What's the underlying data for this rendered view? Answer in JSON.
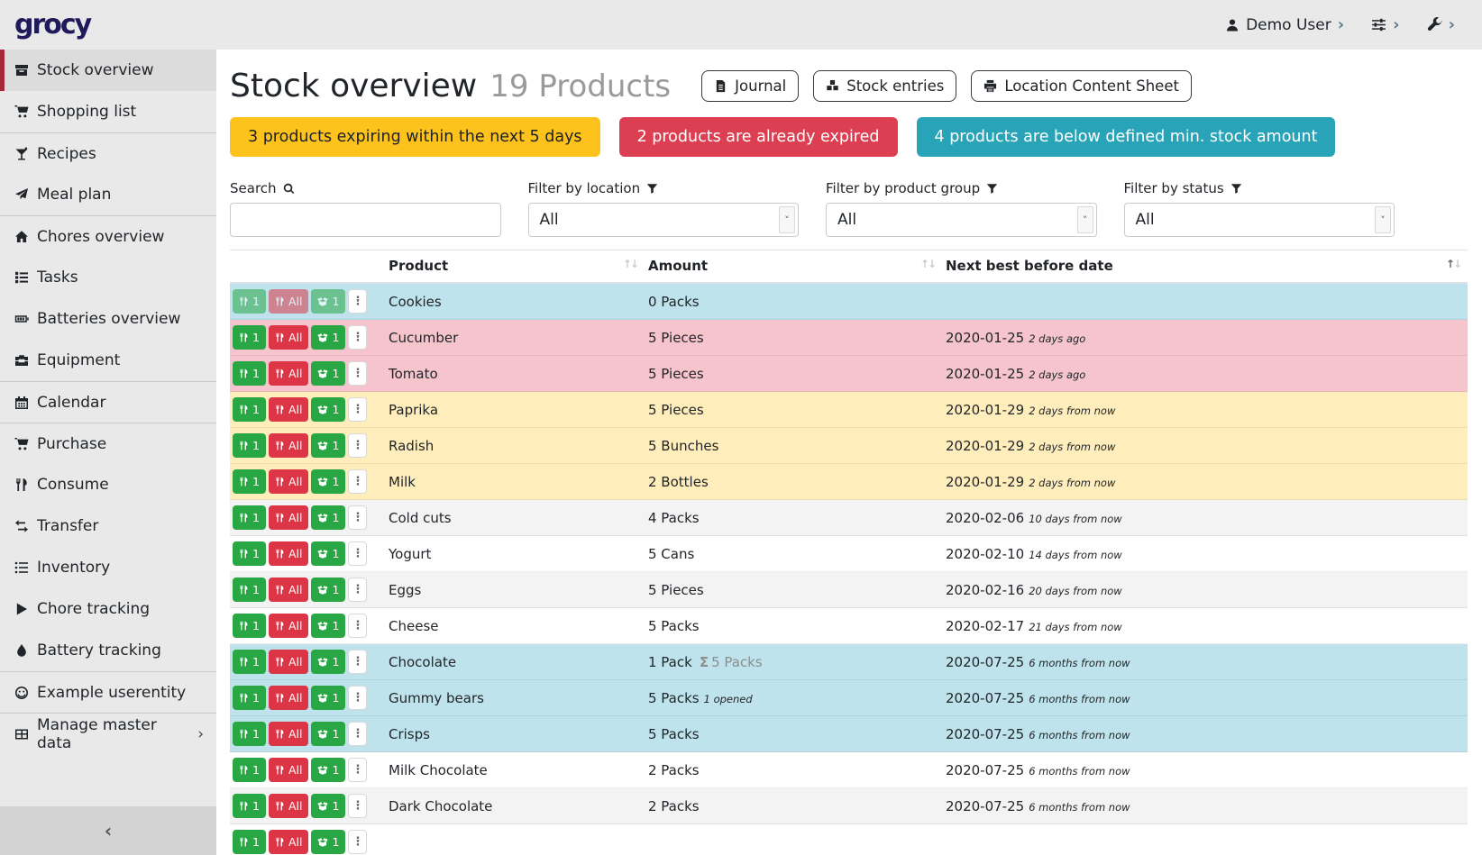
{
  "topbar": {
    "logo": "grocy",
    "user": {
      "label": "Demo User",
      "icon": "person-icon",
      "chevron": "›"
    },
    "settings": {
      "icon": "sliders-icon",
      "chevron": "›"
    },
    "admin": {
      "icon": "wrench-icon",
      "chevron": "›"
    }
  },
  "sidebar": {
    "collapse_chevron": "‹",
    "items": [
      {
        "label": "Stock overview",
        "icon": "box-icon",
        "active": true,
        "group_start": false
      },
      {
        "label": "Shopping list",
        "icon": "cart-icon",
        "active": false,
        "group_start": false
      },
      {
        "label": "Recipes",
        "icon": "cocktail-icon",
        "active": false,
        "group_start": true
      },
      {
        "label": "Meal plan",
        "icon": "paper-plane-icon",
        "active": false,
        "group_start": false
      },
      {
        "label": "Chores overview",
        "icon": "home-icon",
        "active": false,
        "group_start": true
      },
      {
        "label": "Tasks",
        "icon": "tasks-icon",
        "active": false,
        "group_start": false
      },
      {
        "label": "Batteries overview",
        "icon": "battery-icon",
        "active": false,
        "group_start": false
      },
      {
        "label": "Equipment",
        "icon": "toolbox-icon",
        "active": false,
        "group_start": false
      },
      {
        "label": "Calendar",
        "icon": "calendar-icon",
        "active": false,
        "group_start": true
      },
      {
        "label": "Purchase",
        "icon": "cart-icon",
        "active": false,
        "group_start": true
      },
      {
        "label": "Consume",
        "icon": "utensils-icon",
        "active": false,
        "group_start": false
      },
      {
        "label": "Transfer",
        "icon": "exchange-icon",
        "active": false,
        "group_start": false
      },
      {
        "label": "Inventory",
        "icon": "list-icon",
        "active": false,
        "group_start": false
      },
      {
        "label": "Chore tracking",
        "icon": "play-icon",
        "active": false,
        "group_start": false
      },
      {
        "label": "Battery tracking",
        "icon": "tint-icon",
        "active": false,
        "group_start": false
      },
      {
        "label": "Example userentity",
        "icon": "smile-icon",
        "active": false,
        "group_start": true
      },
      {
        "label": "Manage master data",
        "icon": "table-icon",
        "active": false,
        "group_start": true,
        "chevron": "›"
      }
    ]
  },
  "header": {
    "title": "Stock overview",
    "subtitle": "19 Products",
    "buttons": [
      {
        "label": "Journal",
        "icon": "file-icon"
      },
      {
        "label": "Stock entries",
        "icon": "boxes-icon"
      },
      {
        "label": "Location Content Sheet",
        "icon": "print-icon"
      }
    ]
  },
  "alerts": [
    {
      "text": "3 products expiring within the next 5 days",
      "type": "warning",
      "bg": "#fdc21c",
      "fg": "#1d2124"
    },
    {
      "text": "2 products are already expired",
      "type": "danger",
      "bg": "#dc3f51",
      "fg": "#ffffff"
    },
    {
      "text": "4 products are below defined min. stock amount",
      "type": "info",
      "bg": "#29a3b8",
      "fg": "#ffffff"
    }
  ],
  "filters": {
    "search": {
      "label": "Search",
      "icon": "search-icon",
      "value": ""
    },
    "location": {
      "label": "Filter by location",
      "icon": "filter-icon",
      "value": "All"
    },
    "product_group": {
      "label": "Filter by product group",
      "icon": "filter-icon",
      "value": "All"
    },
    "status": {
      "label": "Filter by status",
      "icon": "filter-icon",
      "value": "All"
    }
  },
  "table": {
    "columns": [
      {
        "label": "Product",
        "sorted": "none"
      },
      {
        "label": "Amount",
        "sorted": "none"
      },
      {
        "label": "Next best before date",
        "sorted": "asc"
      }
    ],
    "actions": {
      "consume_one": "1",
      "consume_all": "All",
      "open_one": "1"
    },
    "action_colors": {
      "green": "#2aa745",
      "red": "#dc3545"
    },
    "row_colors": {
      "info": "#bee3ec",
      "danger": "#f5c4cc",
      "warning": "#ffeebb",
      "stripe": "#f3f3f3",
      "plain": "#ffffff"
    },
    "rows": [
      {
        "product": "Cookies",
        "amount": "0 Packs",
        "amount_sum": "",
        "amount_note": "",
        "date": "",
        "date_note": "",
        "row_type": "info",
        "disabled": true,
        "partial": false
      },
      {
        "product": "Cucumber",
        "amount": "5 Pieces",
        "amount_sum": "",
        "amount_note": "",
        "date": "2020-01-25",
        "date_note": "2 days ago",
        "row_type": "danger",
        "disabled": false,
        "partial": false
      },
      {
        "product": "Tomato",
        "amount": "5 Pieces",
        "amount_sum": "",
        "amount_note": "",
        "date": "2020-01-25",
        "date_note": "2 days ago",
        "row_type": "danger",
        "disabled": false,
        "partial": false
      },
      {
        "product": "Paprika",
        "amount": "5 Pieces",
        "amount_sum": "",
        "amount_note": "",
        "date": "2020-01-29",
        "date_note": "2 days from now",
        "row_type": "warning",
        "disabled": false,
        "partial": false
      },
      {
        "product": "Radish",
        "amount": "5 Bunches",
        "amount_sum": "",
        "amount_note": "",
        "date": "2020-01-29",
        "date_note": "2 days from now",
        "row_type": "warning",
        "disabled": false,
        "partial": false
      },
      {
        "product": "Milk",
        "amount": "2 Bottles",
        "amount_sum": "",
        "amount_note": "",
        "date": "2020-01-29",
        "date_note": "2 days from now",
        "row_type": "warning",
        "disabled": false,
        "partial": false
      },
      {
        "product": "Cold cuts",
        "amount": "4 Packs",
        "amount_sum": "",
        "amount_note": "",
        "date": "2020-02-06",
        "date_note": "10 days from now",
        "row_type": "stripe",
        "disabled": false,
        "partial": false
      },
      {
        "product": "Yogurt",
        "amount": "5 Cans",
        "amount_sum": "",
        "amount_note": "",
        "date": "2020-02-10",
        "date_note": "14 days from now",
        "row_type": "plain",
        "disabled": false,
        "partial": false
      },
      {
        "product": "Eggs",
        "amount": "5 Pieces",
        "amount_sum": "",
        "amount_note": "",
        "date": "2020-02-16",
        "date_note": "20 days from now",
        "row_type": "stripe",
        "disabled": false,
        "partial": false
      },
      {
        "product": "Cheese",
        "amount": "5 Packs",
        "amount_sum": "",
        "amount_note": "",
        "date": "2020-02-17",
        "date_note": "21 days from now",
        "row_type": "plain",
        "disabled": false,
        "partial": false
      },
      {
        "product": "Chocolate",
        "amount": "1 Pack",
        "amount_sum": "5 Packs",
        "amount_note": "",
        "date": "2020-07-25",
        "date_note": "6 months from now",
        "row_type": "info",
        "disabled": false,
        "partial": false
      },
      {
        "product": "Gummy bears",
        "amount": "5 Packs",
        "amount_sum": "",
        "amount_note": "1 opened",
        "date": "2020-07-25",
        "date_note": "6 months from now",
        "row_type": "info",
        "disabled": false,
        "partial": false
      },
      {
        "product": "Crisps",
        "amount": "5 Packs",
        "amount_sum": "",
        "amount_note": "",
        "date": "2020-07-25",
        "date_note": "6 months from now",
        "row_type": "info",
        "disabled": false,
        "partial": false
      },
      {
        "product": "Milk Chocolate",
        "amount": "2 Packs",
        "amount_sum": "",
        "amount_note": "",
        "date": "2020-07-25",
        "date_note": "6 months from now",
        "row_type": "plain",
        "disabled": false,
        "partial": false
      },
      {
        "product": "Dark Chocolate",
        "amount": "2 Packs",
        "amount_sum": "",
        "amount_note": "",
        "date": "2020-07-25",
        "date_note": "6 months from now",
        "row_type": "stripe",
        "disabled": false,
        "partial": false
      },
      {
        "product": "",
        "amount": "",
        "amount_sum": "",
        "amount_note": "",
        "date": "",
        "date_note": "",
        "row_type": "plain",
        "disabled": false,
        "partial": true
      }
    ]
  }
}
